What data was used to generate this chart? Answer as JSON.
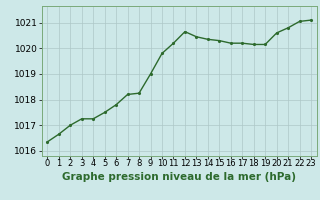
{
  "x": [
    0,
    1,
    2,
    3,
    4,
    5,
    6,
    7,
    8,
    9,
    10,
    11,
    12,
    13,
    14,
    15,
    16,
    17,
    18,
    19,
    20,
    21,
    22,
    23
  ],
  "y": [
    1016.35,
    1016.65,
    1017.0,
    1017.25,
    1017.25,
    1017.5,
    1017.8,
    1018.2,
    1018.25,
    1019.0,
    1019.8,
    1020.2,
    1020.65,
    1020.45,
    1020.35,
    1020.3,
    1020.2,
    1020.2,
    1020.15,
    1020.15,
    1020.6,
    1020.8,
    1021.05,
    1021.1
  ],
  "line_color": "#2d6a2d",
  "marker_color": "#2d6a2d",
  "bg_color": "#cde8e8",
  "grid_color": "#aec8c8",
  "border_color": "#7aaa7a",
  "ylabel_ticks": [
    1016,
    1017,
    1018,
    1019,
    1020,
    1021
  ],
  "xlabel": "Graphe pression niveau de la mer (hPa)",
  "ylim_min": 1015.8,
  "ylim_max": 1021.65,
  "xlim_min": -0.5,
  "xlim_max": 23.5,
  "xlabel_fontsize": 7.5,
  "tick_fontsize": 6.5,
  "line_width": 1.0,
  "marker_size": 2.5
}
